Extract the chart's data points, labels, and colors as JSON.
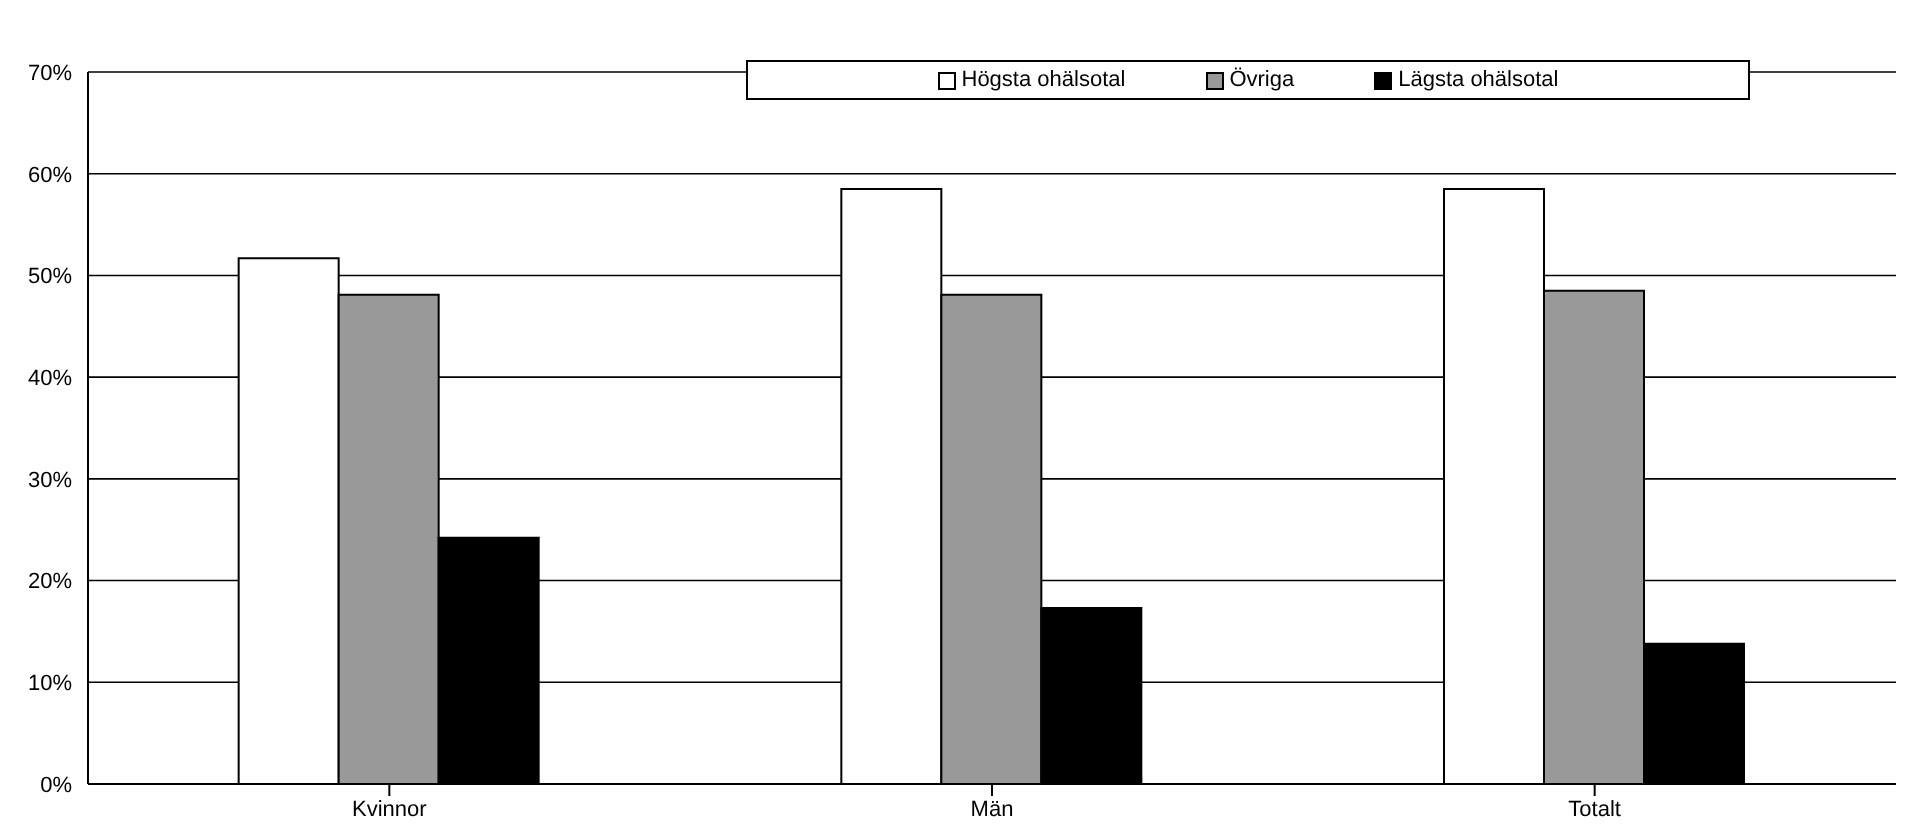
{
  "chart_data": {
    "type": "bar",
    "categories": [
      "Kvinnor",
      "Män",
      "Totalt"
    ],
    "series": [
      {
        "name": "Högsta ohälsotal",
        "color": "#ffffff",
        "values": [
          51.7,
          58.5,
          58.5
        ]
      },
      {
        "name": "Övriga",
        "color": "#999999",
        "values": [
          48.1,
          48.1,
          48.5
        ]
      },
      {
        "name": "Lägsta ohälsotal",
        "color": "#000000",
        "values": [
          24.2,
          17.3,
          13.8
        ]
      }
    ],
    "ylim": [
      0,
      70
    ],
    "yticks": [
      {
        "value": 0,
        "label": "0%"
      },
      {
        "value": 10,
        "label": "10%"
      },
      {
        "value": 20,
        "label": "20%"
      },
      {
        "value": 30,
        "label": "30%"
      },
      {
        "value": 40,
        "label": "40%"
      },
      {
        "value": 50,
        "label": "50%"
      },
      {
        "value": 60,
        "label": "60%"
      },
      {
        "value": 70,
        "label": "70%"
      }
    ],
    "grid": "y",
    "legend": "top"
  }
}
